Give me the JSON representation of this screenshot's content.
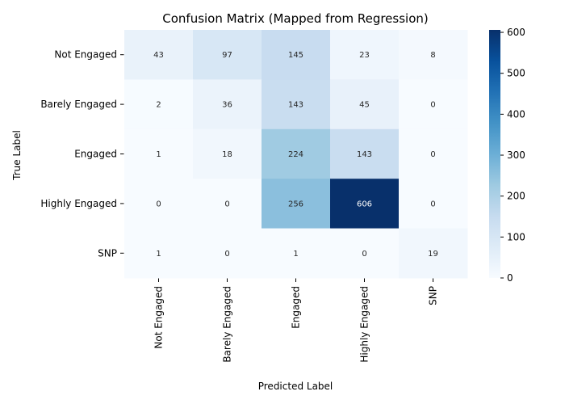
{
  "chart_data": {
    "type": "heatmap",
    "title": "Confusion Matrix (Mapped from Regression)",
    "xlabel": "Predicted Label",
    "ylabel": "True Label",
    "x_categories": [
      "Not Engaged",
      "Barely Engaged",
      "Engaged",
      "Highly Engaged",
      "SNP"
    ],
    "y_categories": [
      "Not Engaged",
      "Barely Engaged",
      "Engaged",
      "Highly Engaged",
      "SNP"
    ],
    "values": [
      [
        43,
        97,
        145,
        23,
        8
      ],
      [
        2,
        36,
        143,
        45,
        0
      ],
      [
        1,
        18,
        224,
        143,
        0
      ],
      [
        0,
        0,
        256,
        606,
        0
      ],
      [
        1,
        0,
        1,
        0,
        19
      ]
    ],
    "colormap": "Blues",
    "colorbar": {
      "range": [
        0,
        606
      ],
      "ticks": [
        0,
        100,
        200,
        300,
        400,
        500,
        600
      ]
    }
  }
}
